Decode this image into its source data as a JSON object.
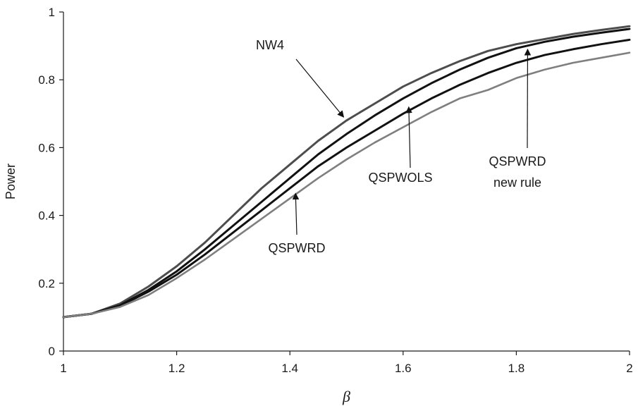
{
  "chart_data": {
    "type": "line",
    "xlabel": "β",
    "ylabel": "Power",
    "xlim": [
      1,
      2
    ],
    "ylim": [
      0,
      1
    ],
    "xticks": [
      1,
      1.2,
      1.4,
      1.6,
      1.8,
      2
    ],
    "xtick_labels": [
      "1",
      "1.2",
      "1.4",
      "1.6",
      "1.8",
      "2"
    ],
    "yticks": [
      0,
      0.2,
      0.4,
      0.6,
      0.8,
      1
    ],
    "ytick_labels": [
      "0",
      "0.2",
      "0.4",
      "0.6",
      "0.8",
      "1"
    ],
    "grid": false,
    "x": [
      1.0,
      1.05,
      1.1,
      1.15,
      1.2,
      1.25,
      1.3,
      1.35,
      1.4,
      1.45,
      1.5,
      1.55,
      1.6,
      1.65,
      1.7,
      1.75,
      1.8,
      1.85,
      1.9,
      1.95,
      2.0
    ],
    "series": [
      {
        "name": "NW4",
        "color": "#4d4d4d",
        "values": [
          0.1,
          0.11,
          0.14,
          0.19,
          0.25,
          0.32,
          0.4,
          0.48,
          0.55,
          0.62,
          0.68,
          0.73,
          0.78,
          0.82,
          0.855,
          0.885,
          0.905,
          0.92,
          0.935,
          0.947,
          0.958
        ]
      },
      {
        "name": "QSPWOLS",
        "color": "#111111",
        "values": [
          0.1,
          0.11,
          0.135,
          0.18,
          0.235,
          0.3,
          0.37,
          0.44,
          0.51,
          0.58,
          0.64,
          0.695,
          0.745,
          0.79,
          0.83,
          0.865,
          0.893,
          0.912,
          0.927,
          0.939,
          0.95
        ]
      },
      {
        "name": "QSPWRD new rule",
        "color": "#111111",
        "values": [
          0.1,
          0.11,
          0.133,
          0.175,
          0.225,
          0.285,
          0.35,
          0.415,
          0.48,
          0.545,
          0.6,
          0.65,
          0.7,
          0.745,
          0.785,
          0.82,
          0.85,
          0.873,
          0.89,
          0.905,
          0.918
        ]
      },
      {
        "name": "QSPWRD",
        "color": "#7f7f7f",
        "values": [
          0.1,
          0.11,
          0.13,
          0.165,
          0.215,
          0.27,
          0.33,
          0.39,
          0.45,
          0.51,
          0.565,
          0.615,
          0.66,
          0.705,
          0.745,
          0.77,
          0.805,
          0.83,
          0.85,
          0.865,
          0.88
        ]
      }
    ],
    "annotations": [
      {
        "text": "NW4",
        "series": "NW4",
        "arrow_to": [
          1.495,
          0.69
        ]
      },
      {
        "text": "QSPWOLS",
        "series": "QSPWOLS",
        "arrow_to": [
          1.61,
          0.72
        ]
      },
      {
        "text": "QSPWRD",
        "series": "QSPWRD new rule",
        "line2": "new rule",
        "arrow_to": [
          1.82,
          0.89
        ]
      },
      {
        "text": "QSPWRD",
        "series": "QSPWRD",
        "arrow_to": [
          1.41,
          0.465
        ]
      }
    ]
  }
}
